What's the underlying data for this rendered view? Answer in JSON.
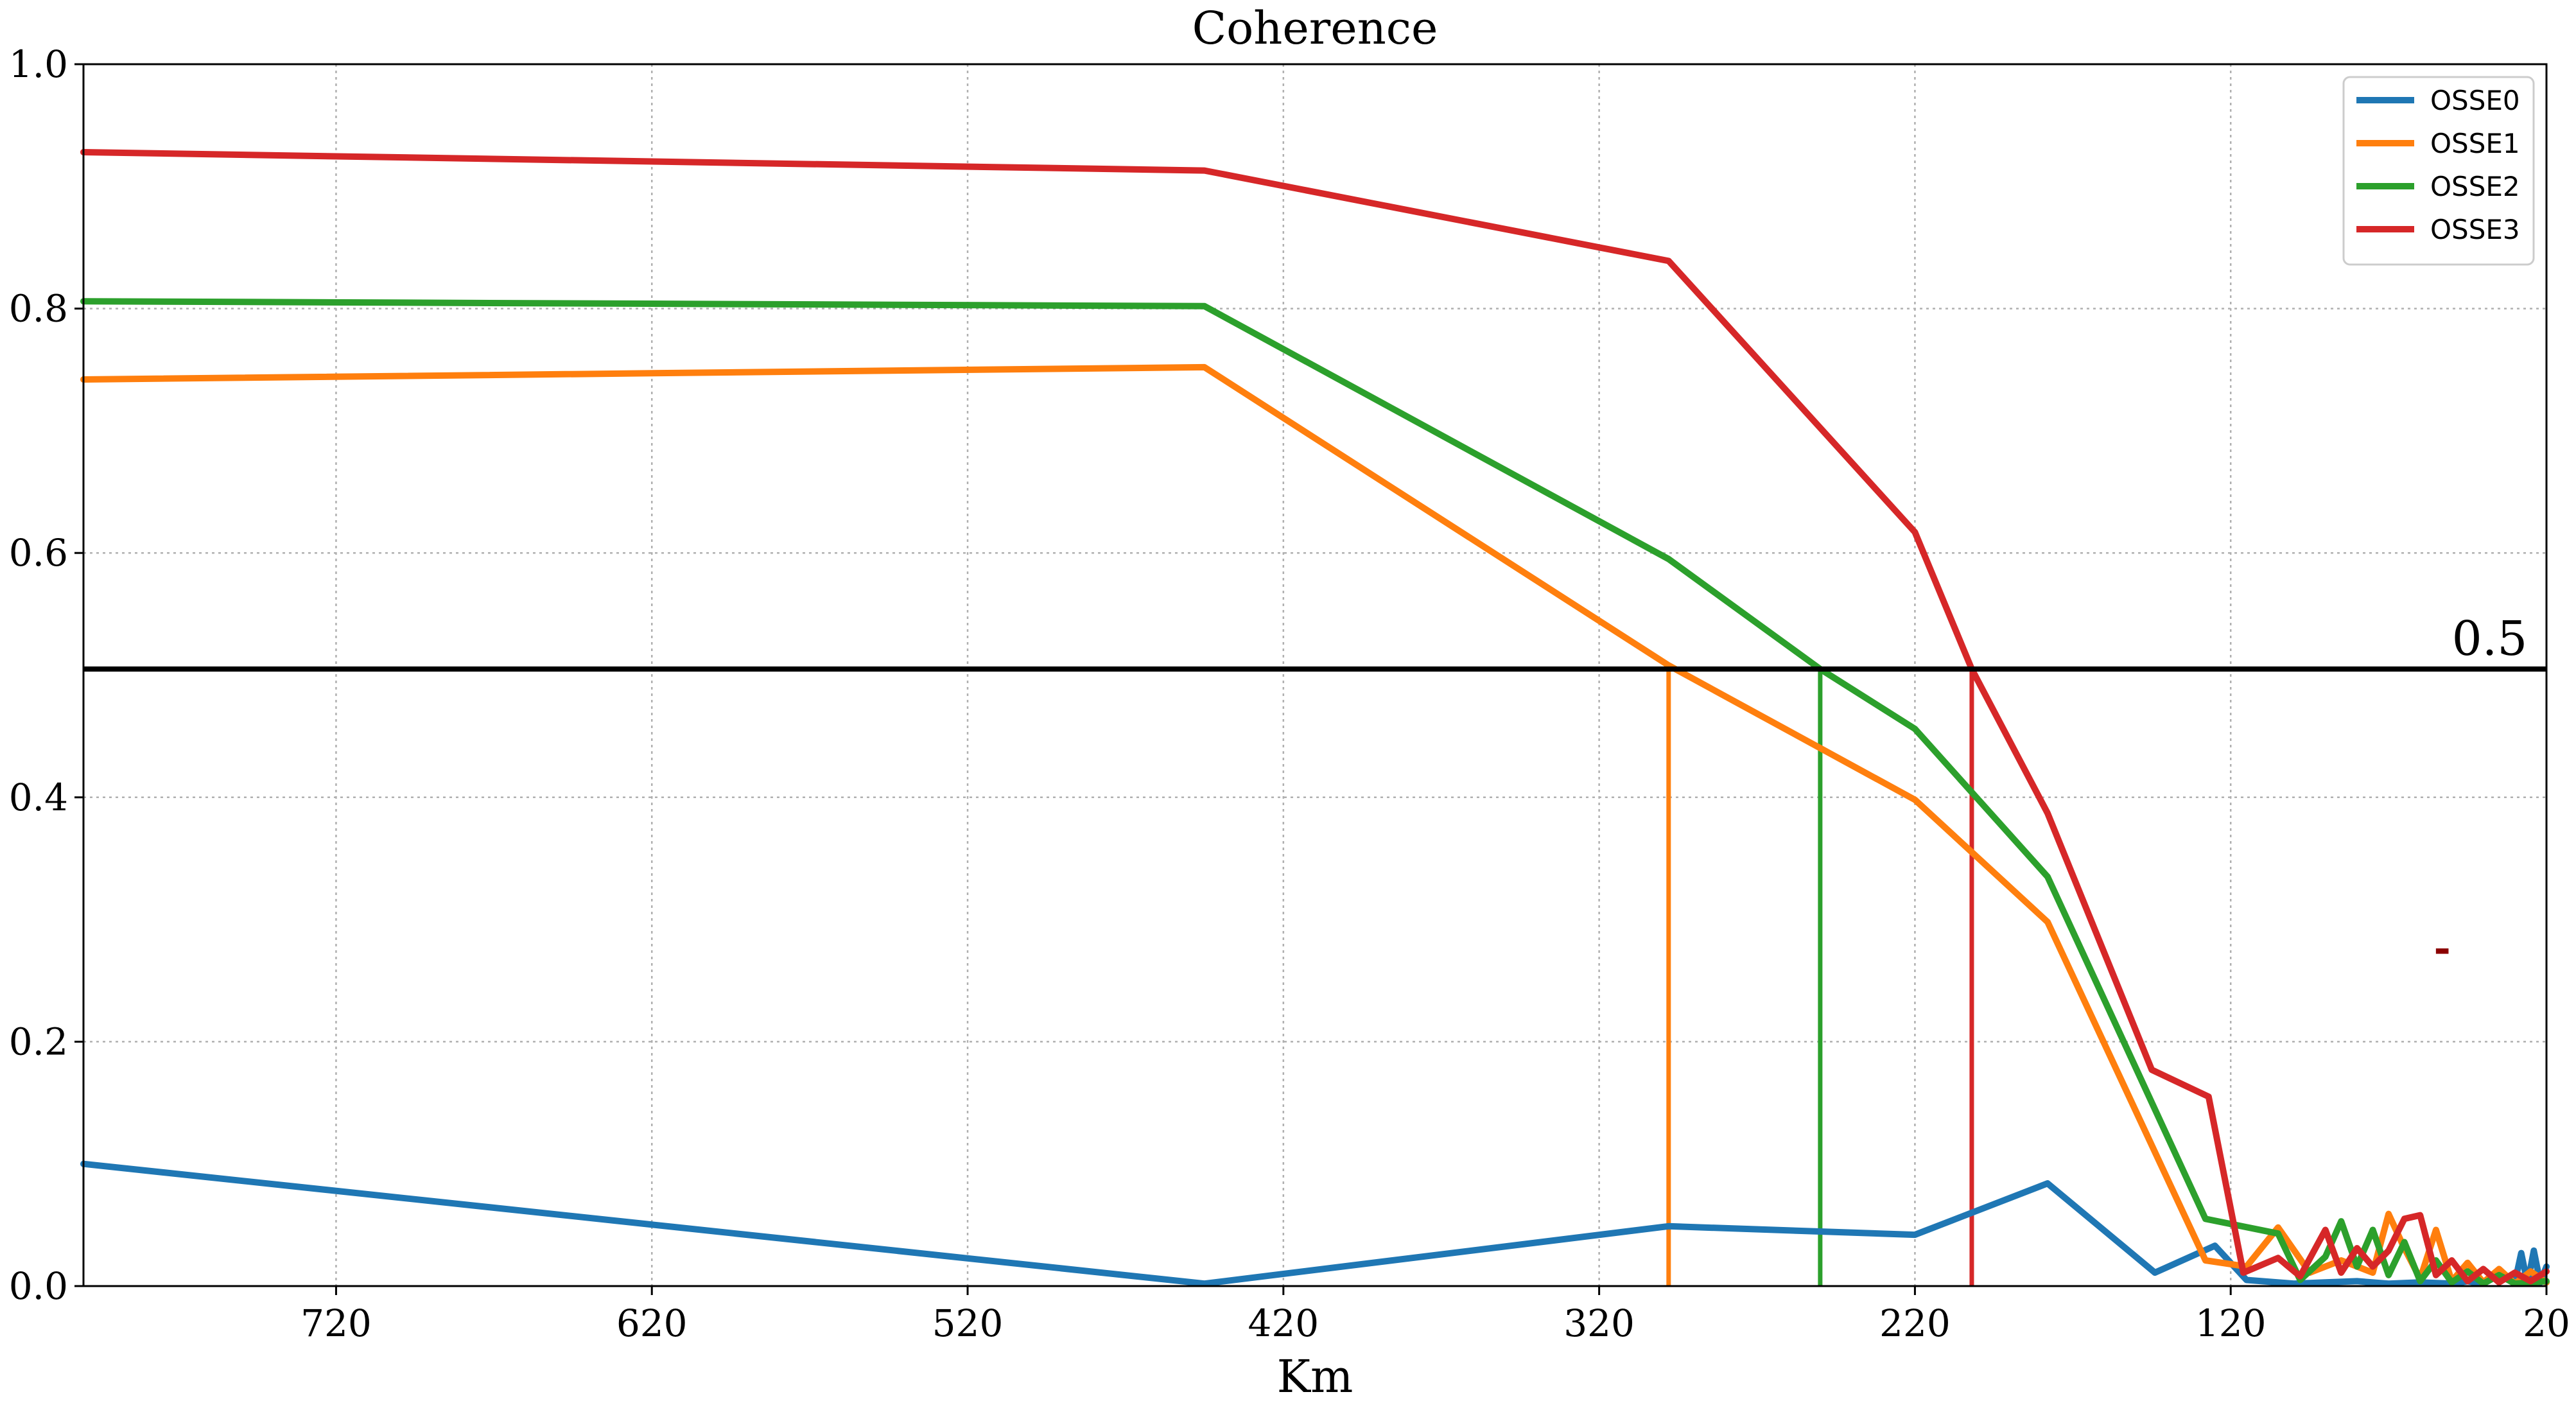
{
  "chart_data": {
    "type": "line",
    "title": "Coherence",
    "xlabel": "Km",
    "ylabel": "",
    "x_reversed": true,
    "xlim": [
      800,
      20
    ],
    "ylim": [
      0.0,
      1.0
    ],
    "xticks": [
      720,
      620,
      520,
      420,
      320,
      220,
      120,
      20
    ],
    "yticks": [
      0.0,
      0.2,
      0.4,
      0.6,
      0.8,
      1.0
    ],
    "xtick_labels": [
      "720",
      "620",
      "520",
      "420",
      "320",
      "220",
      "120",
      "20"
    ],
    "ytick_labels": [
      "0.0",
      "0.2",
      "0.4",
      "0.6",
      "0.8",
      "1.0"
    ],
    "grid": true,
    "legend_position": "top-right",
    "threshold": {
      "value": 0.505,
      "label": "0.5",
      "color": "#000000"
    },
    "crossings": [
      {
        "series": "OSSE1",
        "x": 298,
        "color": "#ff7f0e"
      },
      {
        "series": "OSSE2",
        "x": 250,
        "color": "#2ca02c"
      },
      {
        "series": "OSSE3",
        "x": 202,
        "color": "#d62728"
      }
    ],
    "series": [
      {
        "name": "OSSE0",
        "color": "#1f77b4",
        "points": [
          [
            800,
            0.1
          ],
          [
            445,
            0.002
          ],
          [
            298,
            0.049
          ],
          [
            220,
            0.042
          ],
          [
            178,
            0.084
          ],
          [
            144,
            0.011
          ],
          [
            125,
            0.033
          ],
          [
            115,
            0.005
          ],
          [
            100,
            0.002
          ],
          [
            90,
            0.003
          ],
          [
            80,
            0.004
          ],
          [
            70,
            0.002
          ],
          [
            60,
            0.003
          ],
          [
            50,
            0.002
          ],
          [
            45,
            0.004
          ],
          [
            40,
            0.002
          ],
          [
            35,
            0.009
          ],
          [
            30,
            0.003
          ],
          [
            28,
            0.027
          ],
          [
            26,
            0.002
          ],
          [
            24,
            0.029
          ],
          [
            22,
            0.003
          ],
          [
            20,
            0.016
          ]
        ]
      },
      {
        "name": "OSSE1",
        "color": "#ff7f0e",
        "points": [
          [
            800,
            0.742
          ],
          [
            445,
            0.752
          ],
          [
            298,
            0.508
          ],
          [
            220,
            0.398
          ],
          [
            178,
            0.298
          ],
          [
            128,
            0.021
          ],
          [
            115,
            0.016
          ],
          [
            105,
            0.048
          ],
          [
            95,
            0.011
          ],
          [
            85,
            0.021
          ],
          [
            75,
            0.011
          ],
          [
            70,
            0.059
          ],
          [
            65,
            0.031
          ],
          [
            60,
            0.006
          ],
          [
            55,
            0.046
          ],
          [
            50,
            0.004
          ],
          [
            45,
            0.019
          ],
          [
            40,
            0.003
          ],
          [
            35,
            0.014
          ],
          [
            30,
            0.002
          ],
          [
            25,
            0.012
          ],
          [
            20,
            0.003
          ]
        ]
      },
      {
        "name": "OSSE2",
        "color": "#2ca02c",
        "points": [
          [
            800,
            0.806
          ],
          [
            445,
            0.802
          ],
          [
            298,
            0.595
          ],
          [
            250,
            0.505
          ],
          [
            220,
            0.456
          ],
          [
            178,
            0.335
          ],
          [
            128,
            0.055
          ],
          [
            105,
            0.043
          ],
          [
            98,
            0.005
          ],
          [
            90,
            0.024
          ],
          [
            85,
            0.053
          ],
          [
            80,
            0.016
          ],
          [
            75,
            0.046
          ],
          [
            70,
            0.009
          ],
          [
            65,
            0.036
          ],
          [
            60,
            0.004
          ],
          [
            55,
            0.021
          ],
          [
            50,
            0.003
          ],
          [
            45,
            0.012
          ],
          [
            40,
            0.002
          ],
          [
            35,
            0.009
          ],
          [
            30,
            0.002
          ],
          [
            20,
            0.004
          ]
        ]
      },
      {
        "name": "OSSE3",
        "color": "#d62728",
        "points": [
          [
            800,
            0.928
          ],
          [
            445,
            0.913
          ],
          [
            298,
            0.839
          ],
          [
            220,
            0.617
          ],
          [
            202,
            0.505
          ],
          [
            178,
            0.387
          ],
          [
            145,
            0.177
          ],
          [
            127,
            0.155
          ],
          [
            116,
            0.011
          ],
          [
            105,
            0.023
          ],
          [
            98,
            0.008
          ],
          [
            90,
            0.046
          ],
          [
            85,
            0.011
          ],
          [
            80,
            0.031
          ],
          [
            75,
            0.016
          ],
          [
            70,
            0.029
          ],
          [
            65,
            0.055
          ],
          [
            60,
            0.058
          ],
          [
            55,
            0.009
          ],
          [
            50,
            0.021
          ],
          [
            45,
            0.004
          ],
          [
            40,
            0.014
          ],
          [
            35,
            0.003
          ],
          [
            30,
            0.011
          ],
          [
            25,
            0.004
          ],
          [
            20,
            0.012
          ]
        ]
      }
    ],
    "annotations": [
      {
        "text": "-",
        "x": 53,
        "y": 0.265,
        "color": "#8b0000"
      }
    ]
  }
}
